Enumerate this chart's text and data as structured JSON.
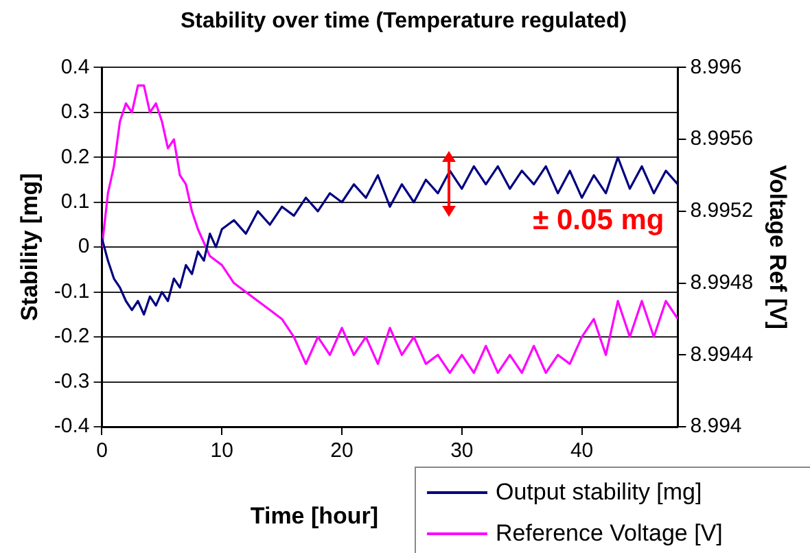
{
  "chart_data": {
    "type": "line",
    "title": "Stability over time (Temperature regulated)",
    "xlabel": "Time [hour]",
    "ylabel": "Stability [mg]",
    "y2label": "Voltage Ref [V]",
    "annotations": [
      "± 0.05 mg"
    ],
    "xlim": [
      0,
      48
    ],
    "xticks": [
      0,
      10,
      20,
      30,
      40
    ],
    "ylim": [
      -0.4,
      0.4
    ],
    "yticks": [
      -0.4,
      -0.3,
      -0.2,
      -0.1,
      0,
      0.1,
      0.2,
      0.3,
      0.4
    ],
    "y2lim": [
      8.994,
      8.996
    ],
    "y2ticks": [
      8.994,
      8.9944,
      8.9948,
      8.9952,
      8.9956,
      8.996
    ],
    "grid": "y",
    "legend": "bottom right",
    "series": [
      {
        "name": "Output stability [mg]",
        "color": "#000080",
        "x": [
          0,
          0.5,
          1,
          1.5,
          2,
          2.5,
          3,
          3.5,
          4,
          4.5,
          5,
          5.5,
          6,
          6.5,
          7,
          7.5,
          8,
          8.5,
          9,
          9.5,
          10,
          11,
          12,
          13,
          14,
          15,
          16,
          17,
          18,
          19,
          20,
          21,
          22,
          23,
          24,
          25,
          26,
          27,
          28,
          29,
          30,
          31,
          32,
          33,
          34,
          35,
          36,
          37,
          38,
          39,
          40,
          41,
          42,
          43,
          44,
          45,
          46,
          47,
          48
        ],
        "values": [
          0.02,
          -0.03,
          -0.07,
          -0.09,
          -0.12,
          -0.14,
          -0.12,
          -0.15,
          -0.11,
          -0.13,
          -0.1,
          -0.12,
          -0.07,
          -0.09,
          -0.04,
          -0.06,
          -0.01,
          -0.03,
          0.03,
          0,
          0.04,
          0.06,
          0.03,
          0.08,
          0.05,
          0.09,
          0.07,
          0.11,
          0.08,
          0.12,
          0.1,
          0.14,
          0.11,
          0.16,
          0.09,
          0.14,
          0.1,
          0.15,
          0.12,
          0.17,
          0.13,
          0.18,
          0.14,
          0.18,
          0.13,
          0.17,
          0.14,
          0.18,
          0.12,
          0.17,
          0.11,
          0.16,
          0.12,
          0.2,
          0.13,
          0.18,
          0.12,
          0.17,
          0.14
        ]
      },
      {
        "name": "Reference Voltage [V]",
        "color": "#ff00ff",
        "axis": "y2",
        "x": [
          0,
          0.5,
          1,
          1.5,
          2,
          2.5,
          3,
          3.5,
          4,
          4.5,
          5,
          5.5,
          6,
          6.5,
          7,
          7.5,
          8,
          9,
          10,
          11,
          12,
          13,
          14,
          15,
          16,
          17,
          18,
          19,
          20,
          21,
          22,
          23,
          24,
          25,
          26,
          27,
          28,
          29,
          30,
          31,
          32,
          33,
          34,
          35,
          36,
          37,
          38,
          39,
          40,
          41,
          42,
          43,
          44,
          45,
          46,
          47,
          48
        ],
        "values": [
          8.995,
          8.9953,
          8.99545,
          8.9957,
          8.9958,
          8.99575,
          8.9959,
          8.9959,
          8.99575,
          8.9958,
          8.9957,
          8.99555,
          8.9956,
          8.9954,
          8.99535,
          8.9952,
          8.9951,
          8.99495,
          8.9949,
          8.9948,
          8.99475,
          8.9947,
          8.99465,
          8.9946,
          8.9945,
          8.99435,
          8.9945,
          8.9944,
          8.99455,
          8.9944,
          8.9945,
          8.99435,
          8.99455,
          8.9944,
          8.9945,
          8.99435,
          8.9944,
          8.9943,
          8.9944,
          8.9943,
          8.99445,
          8.9943,
          8.9944,
          8.9943,
          8.99445,
          8.9943,
          8.9944,
          8.99435,
          8.9945,
          8.9946,
          8.9944,
          8.9947,
          8.9945,
          8.9947,
          8.9945,
          8.9947,
          8.9946
        ]
      }
    ]
  }
}
